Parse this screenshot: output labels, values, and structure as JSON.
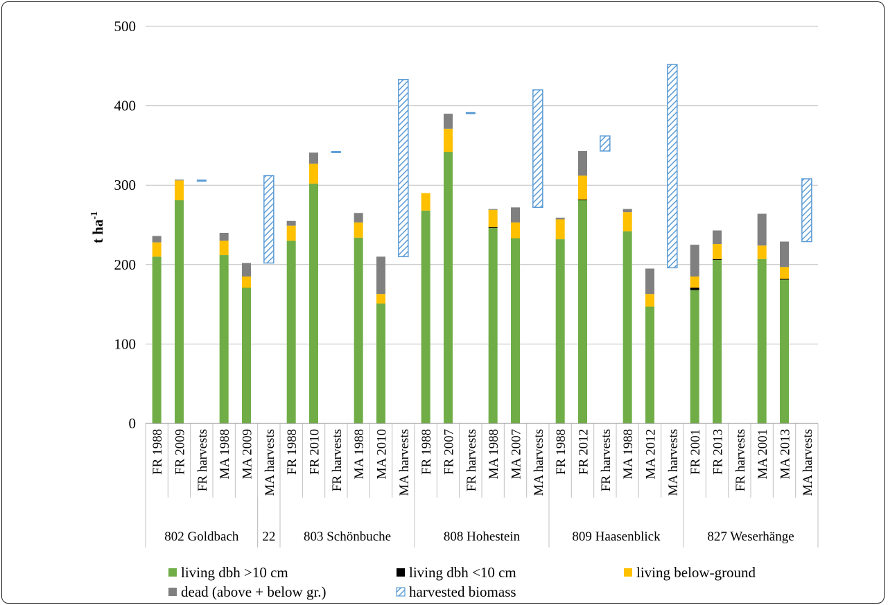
{
  "chart_data": {
    "type": "bar",
    "stacked": true,
    "ylabel": "t ha",
    "ylabel_superscript": "-1",
    "ylim": [
      0,
      500
    ],
    "yticks": [
      0,
      100,
      200,
      300,
      400,
      500
    ],
    "grid": true,
    "legend_position": "bottom",
    "colors": {
      "living_gt10": "#70ad47",
      "living_lt10": "#000000",
      "below": "#ffc000",
      "dead": "#808080",
      "harvest": "#5b9bd5"
    },
    "legend": [
      {
        "key": "living_gt10",
        "label": "living dbh >10 cm"
      },
      {
        "key": "living_lt10",
        "label": "living dbh <10 cm"
      },
      {
        "key": "below",
        "label": "living below-ground"
      },
      {
        "key": "dead",
        "label": "dead (above + below gr.)"
      },
      {
        "key": "harvest",
        "label": "harvested biomass"
      }
    ],
    "groups": [
      {
        "name": "802 Goldbach",
        "start": 0,
        "count": 5
      },
      {
        "name": "22",
        "start": 5,
        "count": 1
      },
      {
        "name": "803 Schönbuche",
        "start": 6,
        "count": 6
      },
      {
        "name": "808 Hohestein",
        "start": 12,
        "count": 6
      },
      {
        "name": "809 Haasenblick",
        "start": 18,
        "count": 6
      },
      {
        "name": "827 Weserhänge",
        "start": 24,
        "count": 6
      }
    ],
    "categories": [
      "FR 1988",
      "FR 2009",
      "FR harvests",
      "MA 1988",
      "MA 2009",
      "MA harvests",
      "FR 1988",
      "FR 2010",
      "FR harvests",
      "MA 1988",
      "MA 2010",
      "MA harvests",
      "FR 1988",
      "FR 2007",
      "FR harvests",
      "MA 1988",
      "MA 2007",
      "MA harvests",
      "FR 1988",
      "FR 2012",
      "FR harvests",
      "MA 1988",
      "MA 2012",
      "MA harvests",
      "FR 2001",
      "FR 2013",
      "FR harvests",
      "MA 2001",
      "MA 2013",
      "MA harvests"
    ],
    "series": [
      {
        "name": "living dbh >10 cm",
        "key": "living_gt10",
        "values": [
          210,
          281,
          null,
          212,
          171,
          null,
          230,
          302,
          null,
          234,
          151,
          null,
          268,
          342,
          null,
          246,
          233,
          null,
          232,
          281,
          null,
          242,
          147,
          null,
          168,
          206,
          null,
          207,
          181,
          null
        ]
      },
      {
        "name": "living dbh <10 cm",
        "key": "living_lt10",
        "values": [
          0,
          0,
          null,
          0,
          0,
          null,
          0,
          0,
          null,
          0,
          0,
          null,
          0,
          0,
          null,
          1,
          0,
          null,
          0,
          1,
          null,
          0,
          0,
          null,
          3,
          1,
          null,
          0,
          1,
          null
        ]
      },
      {
        "name": "living below-ground",
        "key": "below",
        "values": [
          18,
          25,
          null,
          18,
          14,
          null,
          19,
          25,
          null,
          19,
          12,
          null,
          22,
          29,
          null,
          22,
          20,
          null,
          25,
          30,
          null,
          24,
          16,
          null,
          14,
          19,
          null,
          17,
          15,
          null
        ]
      },
      {
        "name": "dead (above + below gr.)",
        "key": "dead",
        "values": [
          8,
          1,
          null,
          10,
          17,
          null,
          6,
          14,
          null,
          12,
          47,
          null,
          0,
          19,
          null,
          1,
          19,
          null,
          2,
          31,
          null,
          4,
          32,
          null,
          40,
          17,
          null,
          40,
          32,
          null
        ]
      },
      {
        "name": "harvested biomass",
        "key": "harvest",
        "floating": true,
        "ranges": [
          null,
          null,
          [
            305,
            307
          ],
          null,
          null,
          [
            202,
            312
          ],
          null,
          null,
          [
            340,
            343
          ],
          null,
          null,
          [
            210,
            433
          ],
          null,
          null,
          [
            389,
            392
          ],
          null,
          null,
          [
            272,
            420
          ],
          null,
          null,
          [
            343,
            362
          ],
          null,
          null,
          [
            196,
            452
          ],
          null,
          null,
          null,
          null,
          null,
          [
            229,
            308
          ]
        ]
      }
    ]
  }
}
